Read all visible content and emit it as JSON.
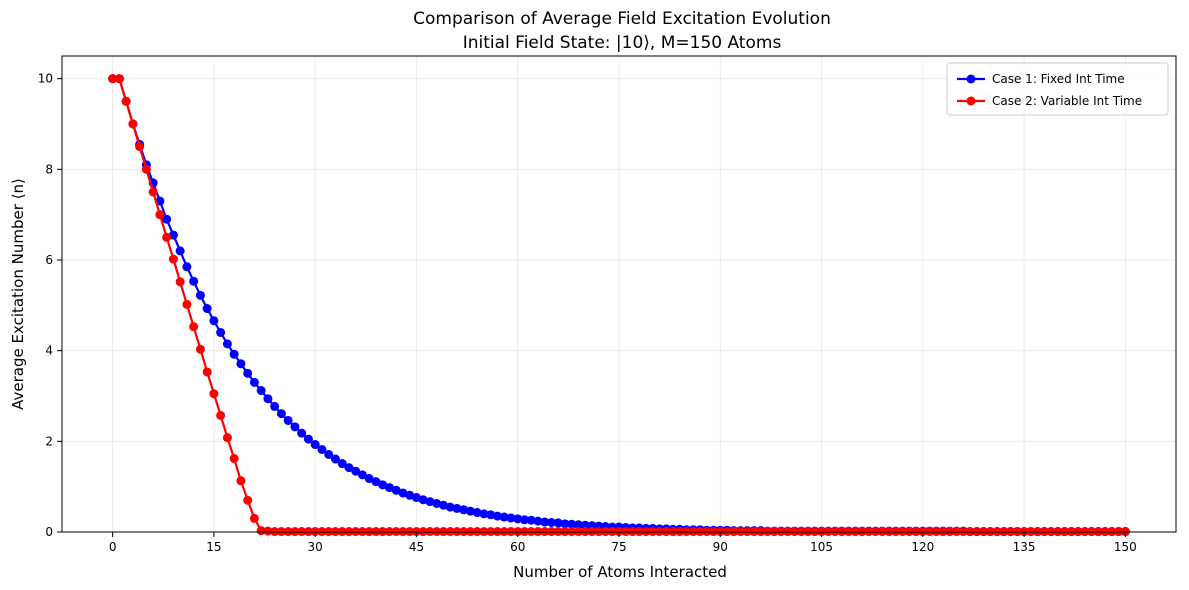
{
  "chart_data": {
    "type": "line",
    "title": "Comparison of Average Field Excitation Evolution",
    "subtitle": "Initial Field State: |10⟩, M=150 Atoms",
    "xlabel": "Number of Atoms Interacted",
    "ylabel": "Average Excitation Number ⟨n⟩",
    "xlim": [
      -7.5,
      157.5
    ],
    "ylim": [
      0,
      10.5
    ],
    "xticks": [
      0,
      15,
      30,
      45,
      60,
      75,
      90,
      105,
      120,
      135,
      150
    ],
    "yticks": [
      0,
      2,
      4,
      6,
      8,
      10
    ],
    "grid": true,
    "legend_position": "top-right",
    "x_range": [
      0,
      150
    ],
    "series": [
      {
        "name": "Case 1: Fixed Int Time",
        "color": "#0000ff",
        "marker": "circle",
        "values": [
          10.0,
          10.0,
          9.5,
          9.0,
          8.55,
          8.1,
          7.7,
          7.3,
          6.9,
          6.55,
          6.2,
          5.85,
          5.53,
          5.22,
          4.93,
          4.66,
          4.4,
          4.15,
          3.92,
          3.71,
          3.5,
          3.3,
          3.12,
          2.94,
          2.77,
          2.61,
          2.46,
          2.32,
          2.18,
          2.05,
          1.93,
          1.82,
          1.71,
          1.61,
          1.51,
          1.42,
          1.34,
          1.26,
          1.18,
          1.11,
          1.04,
          0.98,
          0.92,
          0.86,
          0.81,
          0.76,
          0.71,
          0.67,
          0.63,
          0.59,
          0.55,
          0.52,
          0.49,
          0.46,
          0.43,
          0.4,
          0.38,
          0.35,
          0.33,
          0.31,
          0.29,
          0.27,
          0.26,
          0.24,
          0.22,
          0.21,
          0.2,
          0.18,
          0.17,
          0.16,
          0.15,
          0.14,
          0.13,
          0.12,
          0.11,
          0.11,
          0.1,
          0.09,
          0.09,
          0.08,
          0.08,
          0.07,
          0.07,
          0.06,
          0.06,
          0.05,
          0.05,
          0.05,
          0.04,
          0.04,
          0.04,
          0.04,
          0.03,
          0.03,
          0.03,
          0.03,
          0.03,
          0.02,
          0.02,
          0.02,
          0.02,
          0.02,
          0.02,
          0.02,
          0.02,
          0.02,
          0.02,
          0.02,
          0.02,
          0.02,
          0.02,
          0.02,
          0.02,
          0.02,
          0.02,
          0.02,
          0.02,
          0.02,
          0.02,
          0.02,
          0.02,
          0.02,
          0.02,
          0.02,
          0.02,
          0.02,
          0.02,
          0.01,
          0.01,
          0.01,
          0.01,
          0.01,
          0.01,
          0.01,
          0.01,
          0.01,
          0.01,
          0.01,
          0.01,
          0.01,
          0.01,
          0.01,
          0.01,
          0.01,
          0.01,
          0.01,
          0.01,
          0.01,
          0.01,
          0.01,
          0.01
        ]
      },
      {
        "name": "Case 2: Variable Int Time",
        "color": "#ff0000",
        "marker": "circle",
        "values": [
          10.0,
          10.0,
          9.5,
          9.0,
          8.5,
          8.0,
          7.5,
          7.0,
          6.5,
          6.02,
          5.52,
          5.02,
          4.53,
          4.03,
          3.53,
          3.05,
          2.57,
          2.08,
          1.62,
          1.13,
          0.7,
          0.3,
          0.03,
          0.02,
          0.01,
          0.01,
          0.01,
          0.01,
          0.01,
          0.01,
          0.01,
          0.01,
          0.01,
          0.01,
          0.01,
          0.01,
          0.01,
          0.01,
          0.01,
          0.01,
          0.01,
          0.01,
          0.01,
          0.01,
          0.01,
          0.01,
          0.01,
          0.01,
          0.01,
          0.01,
          0.01,
          0.01,
          0.01,
          0.01,
          0.01,
          0.01,
          0.01,
          0.01,
          0.01,
          0.01,
          0.01,
          0.01,
          0.01,
          0.01,
          0.01,
          0.01,
          0.01,
          0.01,
          0.01,
          0.01,
          0.01,
          0.01,
          0.01,
          0.01,
          0.01,
          0.01,
          0.01,
          0.01,
          0.01,
          0.01,
          0.01,
          0.01,
          0.01,
          0.01,
          0.01,
          0.01,
          0.01,
          0.01,
          0.01,
          0.01,
          0.01,
          0.01,
          0.01,
          0.01,
          0.01,
          0.01,
          0.01,
          0.01,
          0.01,
          0.01,
          0.01,
          0.01,
          0.01,
          0.01,
          0.01,
          0.01,
          0.01,
          0.01,
          0.01,
          0.01,
          0.01,
          0.01,
          0.01,
          0.01,
          0.01,
          0.01,
          0.01,
          0.01,
          0.01,
          0.01,
          0.01,
          0.01,
          0.01,
          0.01,
          0.01,
          0.01,
          0.01,
          0.01,
          0.01,
          0.01,
          0.01,
          0.01,
          0.01,
          0.01,
          0.01,
          0.01,
          0.01,
          0.01,
          0.01,
          0.01,
          0.01,
          0.01,
          0.01,
          0.01,
          0.01,
          0.01,
          0.01,
          0.01,
          0.01,
          0.01,
          0.01
        ]
      }
    ]
  }
}
